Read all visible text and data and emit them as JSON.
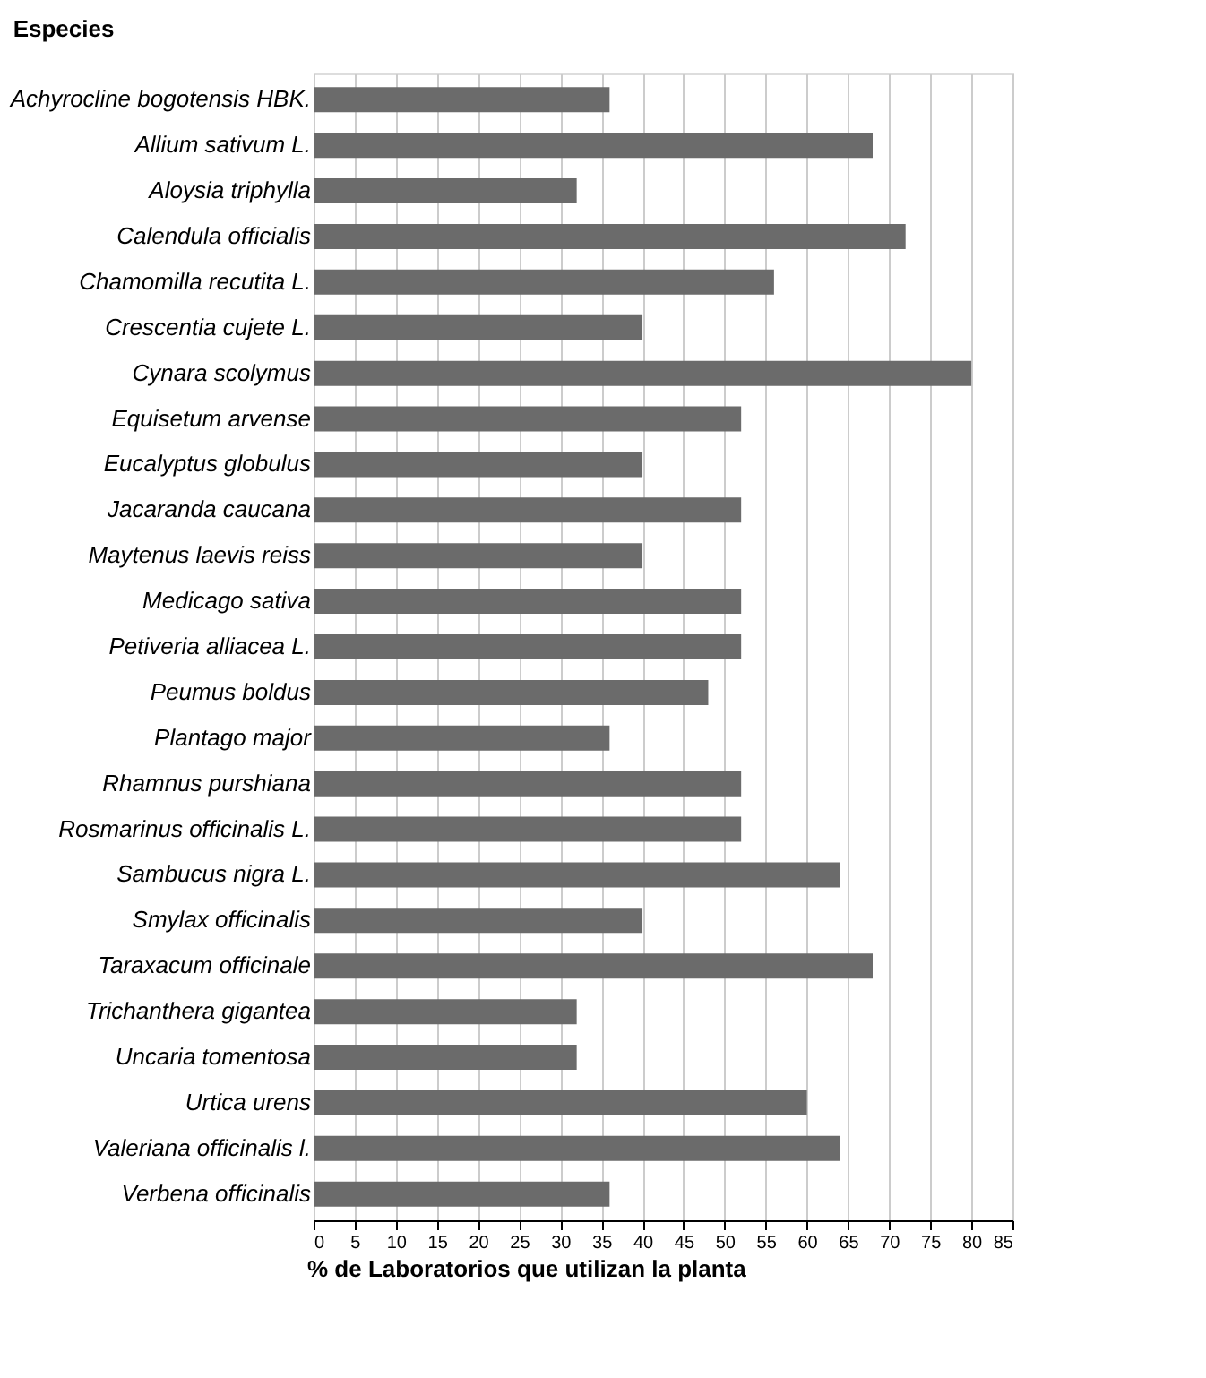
{
  "chart_data": {
    "type": "bar",
    "orientation": "horizontal",
    "ylabel": "Especies",
    "xlabel": "% de Laboratorios que utilizan la planta",
    "categories": [
      "Achyrocline bogotensis HBK.",
      "Allium sativum L.",
      "Aloysia triphylla",
      "Calendula officialis",
      "Chamomilla recutita L.",
      "Crescentia cujete L.",
      "Cynara scolymus",
      "Equisetum arvense",
      "Eucalyptus globulus",
      "Jacaranda caucana",
      "Maytenus laevis reiss",
      "Medicago sativa",
      "Petiveria alliacea L.",
      "Peumus boldus",
      "Plantago major",
      "Rhamnus purshiana",
      "Rosmarinus officinalis L.",
      "Sambucus nigra L.",
      "Smylax officinalis",
      "Taraxacum officinale",
      "Trichanthera gigantea",
      "Uncaria tomentosa",
      "Urtica urens",
      "Valeriana officinalis l.",
      "Verbena officinalis"
    ],
    "values": [
      36,
      68,
      32,
      72,
      56,
      40,
      80,
      52,
      40,
      52,
      40,
      52,
      52,
      48,
      36,
      52,
      52,
      64,
      40,
      68,
      32,
      32,
      60,
      64,
      36
    ],
    "color": "#6b6b6b",
    "xlim": [
      0,
      85
    ],
    "xticks": [
      0,
      5,
      10,
      15,
      20,
      25,
      30,
      35,
      40,
      45,
      50,
      55,
      60,
      65,
      70,
      75,
      80,
      85
    ],
    "grid": "x"
  }
}
